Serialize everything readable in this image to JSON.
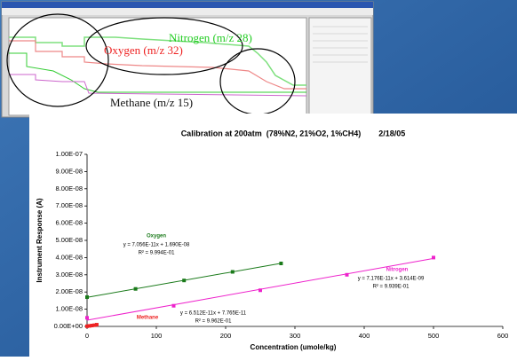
{
  "screenshot": {
    "annotations": [
      {
        "text": "Nitrogen (m/z 28)",
        "color": "#22cc22"
      },
      {
        "text": "Oxygen (m/z 32)",
        "color": "#ee2222"
      },
      {
        "text": "Methane (m/z 15)",
        "color": "#111111"
      }
    ]
  },
  "chart_data": {
    "type": "scatter",
    "title": "Calibration at 200atm  (78%N2, 21%O2, 1%CH4)        2/18/05",
    "x_label": "Concentration (umole/kg)",
    "y_label": "Instrument Response (A)",
    "xlim": [
      0,
      600
    ],
    "xticks": [
      0,
      100,
      200,
      300,
      400,
      500,
      600
    ],
    "ylim": [
      0,
      1e-07
    ],
    "yticks": [
      {
        "value": 0,
        "label": "0.00E+00"
      },
      {
        "value": 1e-08,
        "label": "1.00E-08"
      },
      {
        "value": 2e-08,
        "label": "2.00E-08"
      },
      {
        "value": 3e-08,
        "label": "3.00E-08"
      },
      {
        "value": 4e-08,
        "label": "4.00E-08"
      },
      {
        "value": 5e-08,
        "label": "5.00E-08"
      },
      {
        "value": 6e-08,
        "label": "6.00E-08"
      },
      {
        "value": 7e-08,
        "label": "7.00E-08"
      },
      {
        "value": 8e-08,
        "label": "8.00E-08"
      },
      {
        "value": 9e-08,
        "label": "9.00E-08"
      },
      {
        "value": 1e-07,
        "label": "1.00E-07"
      }
    ],
    "series": [
      {
        "name": "Oxygen",
        "color": "#1a7a1a",
        "x": [
          0,
          70,
          140,
          210,
          280
        ],
        "values": [
          1.7e-08,
          2.18e-08,
          2.67e-08,
          3.17e-08,
          3.66e-08
        ],
        "slope": 7.056e-11,
        "intercept": 1.69e-08,
        "equation": "y = 7.056E-11x + 1.690E-08",
        "r2": "R² = 9.994E-01"
      },
      {
        "name": "Nitrogen",
        "color": "#ee22cc",
        "x": [
          0,
          125,
          250,
          375,
          500
        ],
        "values": [
          5e-09,
          1.2e-08,
          2.1e-08,
          3e-08,
          4e-08
        ],
        "slope": 7.176e-11,
        "intercept": 3.614e-09,
        "equation": "y = 7.176E-11x + 3.614E-09",
        "r2": "R² = 9.939E-01"
      },
      {
        "name": "Methane",
        "color": "#ee2222",
        "x": [
          0,
          3.5,
          7,
          10.5,
          14
        ],
        "values": [
          1e-10,
          3e-10,
          5e-10,
          7e-10,
          1e-09
        ],
        "slope": 6.512e-11,
        "intercept": 7.765e-11,
        "equation": "y = 6.512E-11x + 7.765E-11",
        "r2": "R² = 9.962E-01"
      }
    ]
  }
}
